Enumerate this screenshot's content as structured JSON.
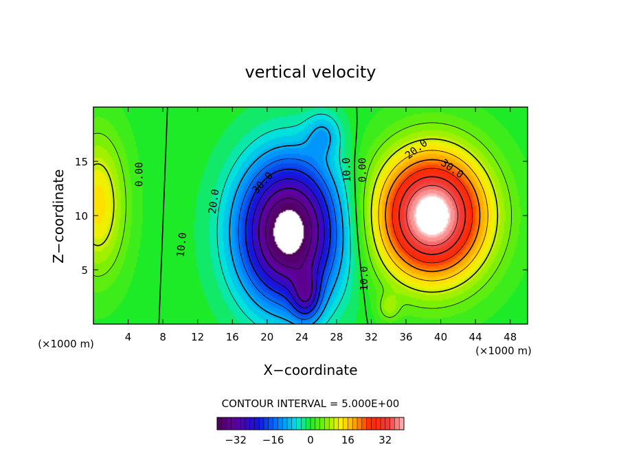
{
  "chart_data": {
    "type": "heatmap",
    "title": "vertical velocity",
    "xlabel": "X−coordinate",
    "ylabel": "Z−coordinate",
    "x_unit_left": "(×1000 m)",
    "x_unit_right": "(×1000 m)",
    "xlim": [
      0,
      50
    ],
    "ylim": [
      0,
      20
    ],
    "xticks": [
      4,
      8,
      12,
      16,
      20,
      24,
      28,
      32,
      36,
      40,
      44,
      48
    ],
    "yticks": [
      5,
      10,
      15
    ],
    "contour_interval_text": "CONTOUR INTERVAL = 5.000E+00",
    "contour_interval": 5,
    "value_range": [
      -40,
      40
    ],
    "colorbar_ticks": [
      -32,
      -16,
      0,
      16,
      32
    ],
    "colorbar_tick_labels": [
      "−32",
      "−16",
      "0",
      "16",
      "32"
    ],
    "features": {
      "downdraft_center": {
        "x": 22.5,
        "z": 8.5,
        "value": -38
      },
      "updraft_center": {
        "x": 39,
        "z": 10,
        "value": 38
      },
      "left_edge_updraft": {
        "x": 0.5,
        "z": 11,
        "value": 12
      }
    },
    "contour_labels": [
      {
        "text": "0.00",
        "x": 5.3,
        "z": 13.8,
        "angle": -90
      },
      {
        "text": "10.0",
        "x": 10.2,
        "z": 7.3,
        "angle": -84
      },
      {
        "text": "20.0",
        "x": 13.9,
        "z": 11.3,
        "angle": -82
      },
      {
        "text": "30.0",
        "x": 19.5,
        "z": 13.0,
        "angle": -48
      },
      {
        "text": "10.0",
        "x": 29.2,
        "z": 14.2,
        "angle": -92
      },
      {
        "text": "0.00",
        "x": 31.0,
        "z": 14.2,
        "angle": -90
      },
      {
        "text": "20.0",
        "x": 37.2,
        "z": 16.1,
        "angle": -38
      },
      {
        "text": "30.0",
        "x": 41.3,
        "z": 14.3,
        "angle": 35
      },
      {
        "text": "10.0",
        "x": 31.2,
        "z": 4.2,
        "angle": -90
      }
    ]
  }
}
